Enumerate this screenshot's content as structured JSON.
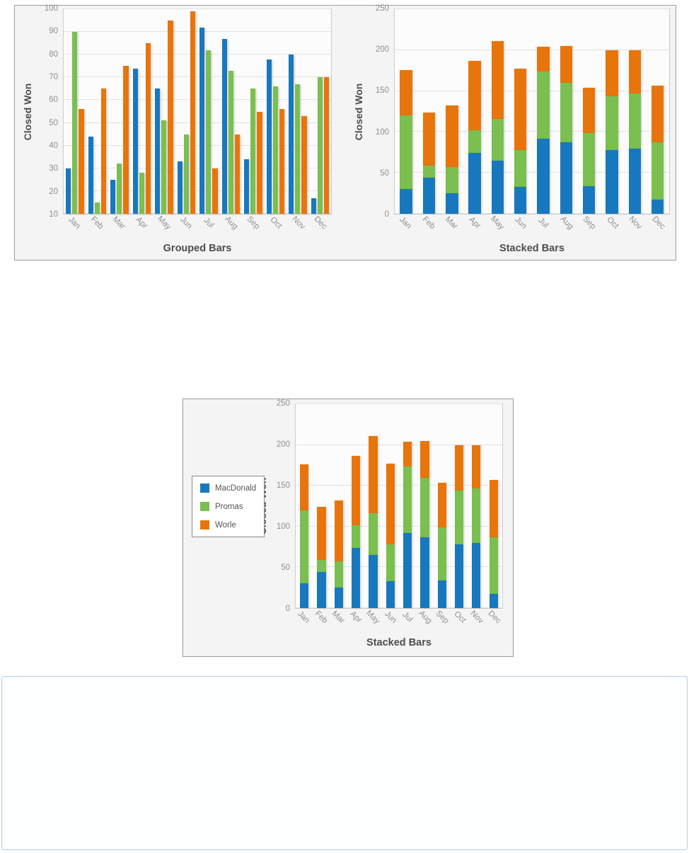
{
  "series_colors": {
    "MacDonald": "#1878bd",
    "Promas": "#7abf4f",
    "Worle": "#e8750c"
  },
  "chart_data": [
    {
      "id": "grouped-bars",
      "type": "bar",
      "variant": "grouped",
      "title": "Grouped Bars",
      "xlabel": "",
      "ylabel": "Closed Won",
      "ylim": [
        10,
        100
      ],
      "yticks": [
        10,
        20,
        30,
        40,
        50,
        60,
        70,
        80,
        90,
        100
      ],
      "grid": true,
      "legend": false,
      "categories": [
        "Jan",
        "Feb",
        "Mar",
        "Apr",
        "May",
        "Jun",
        "Jul",
        "Aug",
        "Sep",
        "Oct",
        "Nov",
        "Dec"
      ],
      "series": [
        {
          "name": "MacDonald",
          "color": "#1878bd",
          "values": [
            30,
            44,
            25,
            74,
            65,
            33,
            92,
            87,
            34,
            78,
            80,
            17
          ]
        },
        {
          "name": "Promas",
          "color": "#7abf4f",
          "values": [
            90,
            15,
            32,
            28,
            51,
            45,
            82,
            73,
            65,
            66,
            67,
            70
          ]
        },
        {
          "name": "Worle",
          "color": "#e8750c",
          "values": [
            56,
            65,
            75,
            85,
            95,
            99,
            30,
            45,
            55,
            56,
            53,
            70
          ]
        }
      ]
    },
    {
      "id": "stacked-bars-top",
      "type": "bar",
      "variant": "stacked",
      "title": "Stacked Bars",
      "xlabel": "",
      "ylabel": "Closed Won",
      "ylim": [
        0,
        250
      ],
      "yticks": [
        0,
        50,
        100,
        150,
        200,
        250
      ],
      "grid": true,
      "legend": false,
      "categories": [
        "Jan",
        "Feb",
        "Mar",
        "Apr",
        "May",
        "Jun",
        "Jul",
        "Aug",
        "Sep",
        "Oct",
        "Nov",
        "Dec"
      ],
      "series": [
        {
          "name": "MacDonald",
          "color": "#1878bd",
          "values": [
            30,
            44,
            25,
            74,
            65,
            33,
            92,
            87,
            34,
            78,
            80,
            17
          ]
        },
        {
          "name": "Promas",
          "color": "#7abf4f",
          "values": [
            90,
            15,
            32,
            28,
            51,
            45,
            82,
            73,
            65,
            66,
            67,
            70
          ]
        },
        {
          "name": "Worle",
          "color": "#e8750c",
          "values": [
            56,
            65,
            75,
            85,
            95,
            99,
            30,
            45,
            55,
            56,
            53,
            70
          ]
        }
      ],
      "stack_totals": [
        176,
        124,
        132,
        187,
        211,
        177,
        204,
        205,
        154,
        200,
        200,
        157
      ]
    },
    {
      "id": "stacked-bars-with-legend",
      "type": "bar",
      "variant": "stacked",
      "title": "Stacked Bars",
      "xlabel": "",
      "ylabel": "Closed Won",
      "ylim": [
        0,
        250
      ],
      "yticks": [
        0,
        50,
        100,
        150,
        200,
        250
      ],
      "grid": true,
      "legend": true,
      "legend_position": "left",
      "legend_items": [
        "MacDonald",
        "Promas",
        "Worle"
      ],
      "categories": [
        "Jan",
        "Feb",
        "Mar",
        "Apr",
        "May",
        "Jun",
        "Jul",
        "Aug",
        "Sep",
        "Oct",
        "Nov",
        "Dec"
      ],
      "series": [
        {
          "name": "MacDonald",
          "color": "#1878bd",
          "values": [
            30,
            44,
            25,
            74,
            65,
            33,
            92,
            87,
            34,
            78,
            80,
            17
          ]
        },
        {
          "name": "Promas",
          "color": "#7abf4f",
          "values": [
            90,
            15,
            32,
            28,
            51,
            45,
            82,
            73,
            65,
            66,
            67,
            70
          ]
        },
        {
          "name": "Worle",
          "color": "#e8750c",
          "values": [
            56,
            65,
            75,
            85,
            95,
            99,
            30,
            45,
            55,
            56,
            53,
            70
          ]
        }
      ],
      "stack_totals": [
        176,
        124,
        132,
        187,
        211,
        177,
        204,
        205,
        154,
        200,
        200,
        157
      ]
    }
  ]
}
